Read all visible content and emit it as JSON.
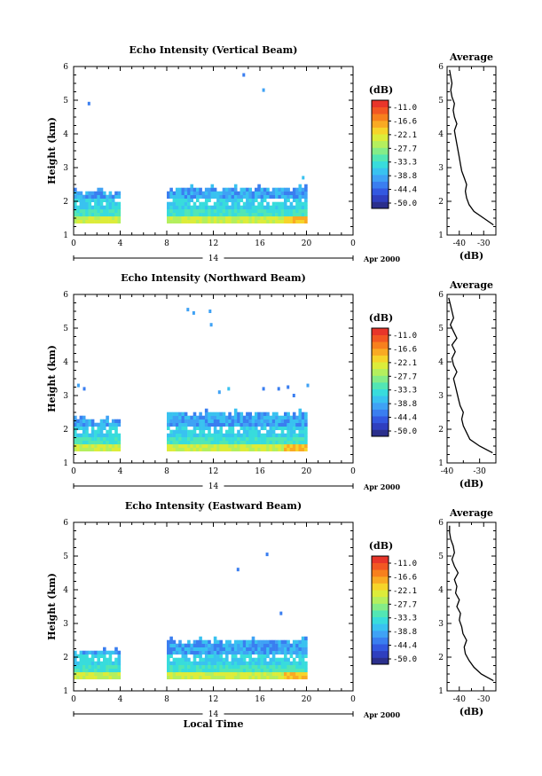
{
  "chart_data": [
    {
      "type": "heatmap",
      "title": "Echo Intensity (Vertical Beam)",
      "ylabel": "Height (km)",
      "xlabel": "",
      "x_ticks": [
        "0",
        "4",
        "8",
        "12",
        "16",
        "20",
        "0"
      ],
      "y_ticks": [
        "1",
        "2",
        "3",
        "4",
        "5",
        "6"
      ],
      "xlim": [
        0,
        24
      ],
      "ylim": [
        1,
        6
      ],
      "date_day": "14",
      "date_label": "Apr 2000",
      "data_segments": [
        [
          0,
          4
        ],
        [
          8,
          20
        ]
      ],
      "echo_layer_top_km": [
        2.3,
        2.4
      ],
      "isolated_points": [
        {
          "x": 1.2,
          "y": 4.9
        },
        {
          "x": 14.5,
          "y": 5.75
        },
        {
          "x": 16.2,
          "y": 5.3
        },
        {
          "x": 19.6,
          "y": 2.7
        }
      ],
      "colorbar": {
        "unit": "(dB)",
        "ticks": [
          "-11.0",
          "-16.6",
          "-22.1",
          "-27.7",
          "-33.3",
          "-38.8",
          "-44.4",
          "-50.0"
        ]
      },
      "profile": {
        "title": "Average",
        "xlabel": "(dB)",
        "x_ticks": [
          "-40",
          "-30"
        ],
        "xlim": [
          -45,
          -25
        ],
        "heights": [
          1.3,
          1.5,
          1.7,
          1.9,
          2.1,
          2.3,
          2.5,
          2.7,
          2.9,
          3.1,
          3.3,
          3.5,
          3.7,
          3.9,
          4.1,
          4.3,
          4.5,
          4.7,
          4.9,
          5.1,
          5.3,
          5.5,
          5.7,
          5.9
        ],
        "values": [
          -26,
          -30,
          -34,
          -36,
          -37,
          -37.5,
          -37,
          -38,
          -39,
          -39.5,
          -40,
          -40.5,
          -41,
          -41.5,
          -42,
          -41,
          -42,
          -42.5,
          -42,
          -43,
          -43.5,
          -43,
          -43.5,
          -44
        ]
      }
    },
    {
      "type": "heatmap",
      "title": "Echo Intensity (Northward Beam)",
      "ylabel": "Height (km)",
      "xlabel": "",
      "x_ticks": [
        "0",
        "4",
        "8",
        "12",
        "16",
        "20",
        "0"
      ],
      "y_ticks": [
        "1",
        "2",
        "3",
        "4",
        "5",
        "6"
      ],
      "xlim": [
        0,
        24
      ],
      "ylim": [
        1,
        6
      ],
      "date_day": "14",
      "date_label": "Apr 2000",
      "data_segments": [
        [
          0,
          4
        ],
        [
          8,
          20
        ]
      ],
      "echo_layer_top_km": [
        2.3,
        2.5
      ],
      "isolated_points": [
        {
          "x": 0.3,
          "y": 3.3
        },
        {
          "x": 0.8,
          "y": 3.2
        },
        {
          "x": 9.7,
          "y": 5.55
        },
        {
          "x": 10.2,
          "y": 5.45
        },
        {
          "x": 11.6,
          "y": 5.5
        },
        {
          "x": 11.7,
          "y": 5.1
        },
        {
          "x": 12.4,
          "y": 3.1
        },
        {
          "x": 13.2,
          "y": 3.2
        },
        {
          "x": 16.2,
          "y": 3.2
        },
        {
          "x": 17.5,
          "y": 3.2
        },
        {
          "x": 18.3,
          "y": 3.25
        },
        {
          "x": 18.8,
          "y": 3.0
        },
        {
          "x": 20.0,
          "y": 3.3
        }
      ],
      "colorbar": {
        "unit": "(dB)",
        "ticks": [
          "-11.0",
          "-16.6",
          "-22.1",
          "-27.7",
          "-33.3",
          "-38.8",
          "-44.4",
          "-50.0"
        ]
      },
      "profile": {
        "title": "Average",
        "xlabel": "(dB)",
        "x_ticks": [
          "-40",
          "-30"
        ],
        "xlim": [
          -40,
          -25
        ],
        "heights": [
          1.3,
          1.5,
          1.7,
          1.9,
          2.1,
          2.3,
          2.5,
          2.7,
          2.9,
          3.1,
          3.3,
          3.5,
          3.7,
          3.9,
          4.1,
          4.3,
          4.5,
          4.7,
          4.9,
          5.1,
          5.3,
          5.5,
          5.7,
          5.9
        ],
        "values": [
          -26,
          -30,
          -33,
          -34,
          -35,
          -35.5,
          -35,
          -36,
          -36.5,
          -37,
          -37.5,
          -38,
          -37,
          -38,
          -38.5,
          -37.5,
          -38.5,
          -37,
          -38,
          -39,
          -38,
          -38.5,
          -39,
          -39.5
        ]
      }
    },
    {
      "type": "heatmap",
      "title": "Echo Intensity (Eastward Beam)",
      "ylabel": "Height (km)",
      "xlabel": "Local Time",
      "x_ticks": [
        "0",
        "4",
        "8",
        "12",
        "16",
        "20",
        "0"
      ],
      "y_ticks": [
        "1",
        "2",
        "3",
        "4",
        "5",
        "6"
      ],
      "xlim": [
        0,
        24
      ],
      "ylim": [
        1,
        6
      ],
      "date_day": "14",
      "date_label": "Apr 2000",
      "data_segments": [
        [
          0,
          4
        ],
        [
          8,
          20
        ]
      ],
      "echo_layer_top_km": [
        2.2,
        2.5
      ],
      "isolated_points": [
        {
          "x": 14.0,
          "y": 4.6
        },
        {
          "x": 16.5,
          "y": 5.05
        },
        {
          "x": 17.7,
          "y": 3.3
        }
      ],
      "colorbar": {
        "unit": "(dB)",
        "ticks": [
          "-11.0",
          "-16.6",
          "-22.1",
          "-27.7",
          "-33.3",
          "-38.8",
          "-44.4",
          "-50.0"
        ]
      },
      "profile": {
        "title": "Average",
        "xlabel": "(dB)",
        "x_ticks": [
          "-40",
          "-30"
        ],
        "xlim": [
          -45,
          -25
        ],
        "heights": [
          1.3,
          1.5,
          1.7,
          1.9,
          2.1,
          2.3,
          2.5,
          2.7,
          2.9,
          3.1,
          3.3,
          3.5,
          3.7,
          3.9,
          4.1,
          4.3,
          4.5,
          4.7,
          4.9,
          5.1,
          5.3,
          5.5,
          5.7,
          5.9
        ],
        "values": [
          -26,
          -31,
          -34,
          -36,
          -37.5,
          -38,
          -37,
          -38.5,
          -39,
          -40,
          -39.5,
          -41,
          -40,
          -41.5,
          -41,
          -42,
          -40.5,
          -42,
          -43,
          -42,
          -42.5,
          -43.5,
          -44,
          -44
        ]
      }
    }
  ]
}
